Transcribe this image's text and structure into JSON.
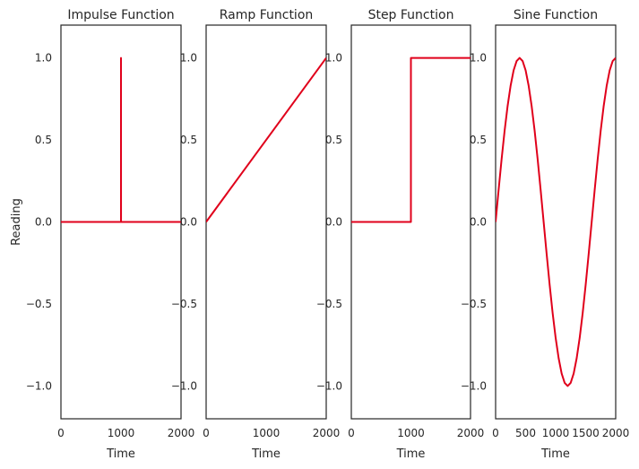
{
  "chart_data": [
    {
      "type": "line",
      "title": "Impulse Function",
      "xlabel": "Time",
      "ylabel": "Reading",
      "xlim": [
        0,
        2000
      ],
      "ylim": [
        -1.2,
        1.2
      ],
      "xticks": [
        "0",
        "1000",
        "2000"
      ],
      "yticks": [
        "−1.0",
        "−0.5",
        "0.0",
        "0.5",
        "1.0"
      ],
      "grid": false,
      "series": [
        {
          "color": "#e0001b",
          "x": [
            0,
            999,
            1000,
            1000,
            1001,
            2000
          ],
          "y": [
            0,
            0,
            0,
            1,
            0,
            0
          ]
        }
      ]
    },
    {
      "type": "line",
      "title": "Ramp Function",
      "xlabel": "Time",
      "ylabel": "",
      "xlim": [
        0,
        2000
      ],
      "ylim": [
        -1.2,
        1.2
      ],
      "xticks": [
        "0",
        "1000",
        "2000"
      ],
      "yticks": [
        "−1.0",
        "−0.5",
        "0.0",
        "0.5",
        "1.0"
      ],
      "grid": false,
      "series": [
        {
          "color": "#e0001b",
          "x": [
            0,
            2000
          ],
          "y": [
            0,
            1
          ]
        }
      ]
    },
    {
      "type": "line",
      "title": "Step Function",
      "xlabel": "Time",
      "ylabel": "",
      "xlim": [
        0,
        2000
      ],
      "ylim": [
        -1.2,
        1.2
      ],
      "xticks": [
        "0",
        "1000",
        "2000"
      ],
      "yticks": [
        "−1.0",
        "−0.5",
        "0.0",
        "0.5",
        "1.0"
      ],
      "grid": false,
      "series": [
        {
          "color": "#e0001b",
          "x": [
            0,
            1000,
            1000,
            2000
          ],
          "y": [
            0,
            0,
            1,
            1
          ]
        }
      ]
    },
    {
      "type": "line",
      "title": "Sine Function",
      "xlabel": "Time",
      "ylabel": "",
      "xlim": [
        0,
        2000
      ],
      "ylim": [
        -1.2,
        1.2
      ],
      "xticks": [
        "0",
        "500",
        "1000",
        "1500",
        "2000"
      ],
      "yticks": [
        "−1.0",
        "−0.5",
        "0.0",
        "0.5",
        "1.0"
      ],
      "grid": false,
      "series": [
        {
          "color": "#e0001b",
          "x": [
            0,
            50,
            100,
            150,
            200,
            250,
            300,
            350,
            400,
            450,
            500,
            550,
            600,
            650,
            700,
            750,
            800,
            850,
            900,
            950,
            1000,
            1050,
            1100,
            1150,
            1200,
            1250,
            1300,
            1350,
            1400,
            1450,
            1500,
            1550,
            1600,
            1650,
            1700,
            1750,
            1800,
            1850,
            1900,
            1950,
            2000
          ],
          "y": [
            0,
            0.195,
            0.383,
            0.556,
            0.707,
            0.831,
            0.924,
            0.981,
            1,
            0.981,
            0.924,
            0.831,
            0.707,
            0.556,
            0.383,
            0.195,
            0,
            -0.195,
            -0.383,
            -0.556,
            -0.707,
            -0.831,
            -0.924,
            -0.981,
            -1,
            -0.981,
            -0.924,
            -0.831,
            -0.707,
            -0.556,
            -0.383,
            -0.195,
            0,
            0.195,
            0.383,
            0.556,
            0.707,
            0.831,
            0.924,
            0.981,
            1
          ]
        }
      ]
    }
  ]
}
